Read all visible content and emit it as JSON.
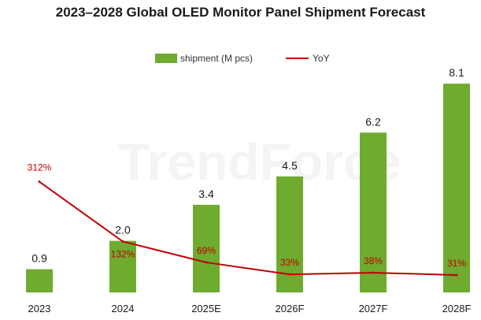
{
  "chart_data": {
    "type": "bar",
    "title": "2023–2028 Global OLED Monitor Panel Shipment Forecast",
    "watermark": "TrendForce",
    "categories": [
      "2023",
      "2024",
      "2025E",
      "2026F",
      "2027F",
      "2028F"
    ],
    "series": [
      {
        "name": "shipment (M pcs)",
        "type": "bar",
        "color": "#6eab2f",
        "values": [
          0.9,
          2.0,
          3.4,
          4.5,
          6.2,
          8.1
        ],
        "labels": [
          "0.9",
          "2.0",
          "3.4",
          "4.5",
          "6.2",
          "8.1"
        ]
      },
      {
        "name": "YoY",
        "type": "line",
        "color": "#c00000",
        "values": [
          312,
          132,
          69,
          33,
          38,
          31
        ],
        "labels": [
          "312%",
          "132%",
          "69%",
          "33%",
          "38%",
          "31%"
        ]
      }
    ],
    "legend_position": "top-center",
    "grid": false
  }
}
